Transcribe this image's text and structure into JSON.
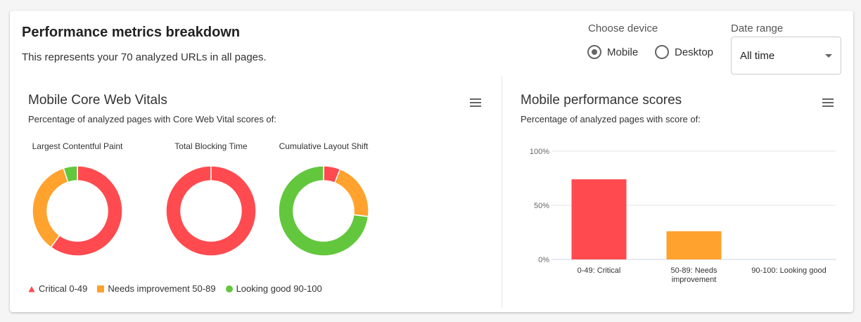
{
  "header": {
    "title": "Performance metrics breakdown",
    "subtitle": "This represents your 70 analyzed URLs in all pages."
  },
  "device": {
    "label": "Choose device",
    "options": [
      {
        "label": "Mobile",
        "selected": true
      },
      {
        "label": "Desktop",
        "selected": false
      }
    ]
  },
  "date_range": {
    "label": "Date range",
    "value": "All time"
  },
  "colors": {
    "critical": "#ff4b4f",
    "needs_improvement": "#ffa22e",
    "good": "#62c73d"
  },
  "chart_data": [
    {
      "type": "pie",
      "title": "Mobile Core Web Vitals",
      "subtitle": "Percentage of analyzed pages with Core Web Vital scores of:",
      "charts": [
        {
          "title": "Largest Contentful Paint",
          "values": [
            60,
            35,
            5
          ]
        },
        {
          "title": "Total Blocking Time",
          "values": [
            100,
            0,
            0
          ]
        },
        {
          "title": "Cumulative Layout Shift",
          "values": [
            6,
            21,
            73
          ]
        }
      ],
      "legend": [
        {
          "label": "Critical 0-49",
          "symbol": "triangle"
        },
        {
          "label": "Needs improvement 50-89",
          "symbol": "square"
        },
        {
          "label": "Looking good 90-100",
          "symbol": "circle"
        }
      ]
    },
    {
      "type": "bar",
      "title": "Mobile performance scores",
      "subtitle": "Percentage of analyzed pages with score of:",
      "categories": [
        "0-49: Critical",
        "50-89: Needs improvement",
        "90-100: Looking good"
      ],
      "values": [
        74,
        26,
        0
      ],
      "ylim": [
        0,
        100
      ],
      "yticks": [
        "0%",
        "50%",
        "100%"
      ],
      "grid": true
    }
  ]
}
